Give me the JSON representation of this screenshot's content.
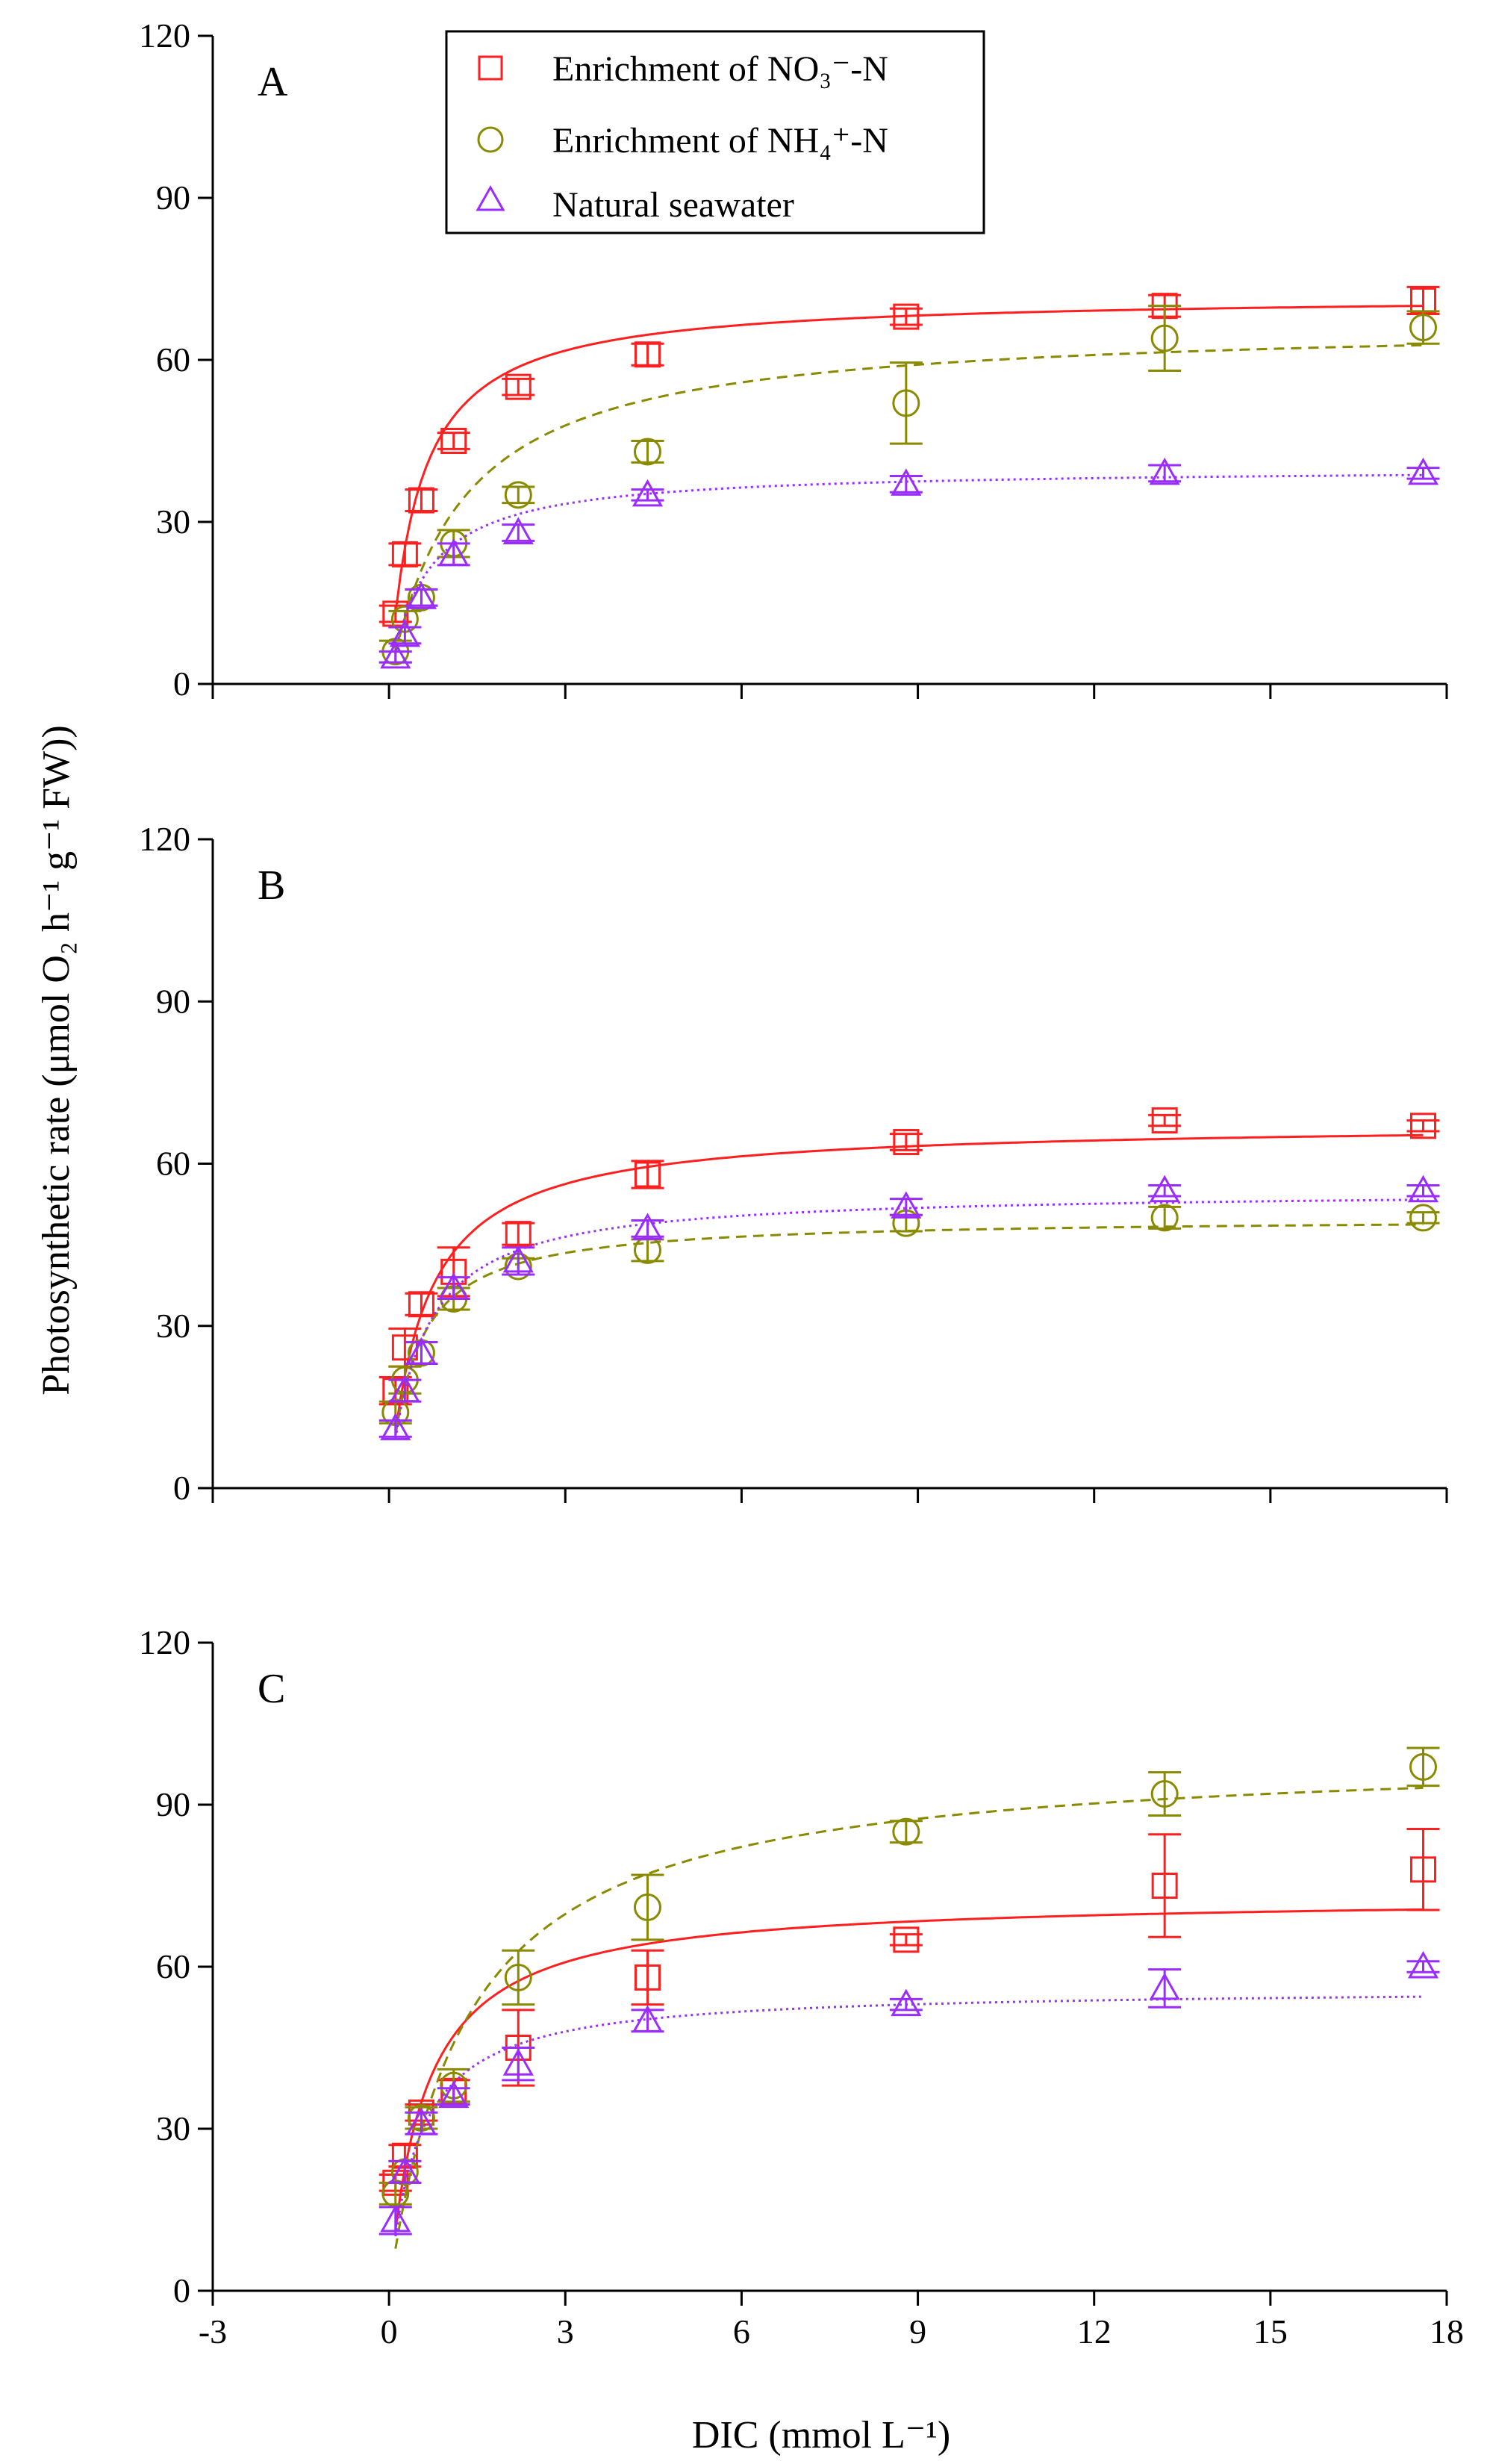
{
  "chart_data": [
    {
      "type": "scatter",
      "panel_label": "A",
      "title": "",
      "xlabel": "DIC (mmol L⁻¹)",
      "ylabel": "Photosynthetic rate (μmol O₂ h⁻¹ g⁻¹ FW))",
      "xlim": [
        -3,
        18
      ],
      "ylim": [
        0,
        120
      ],
      "x_ticks": [
        "-3",
        "0",
        "3",
        "6",
        "9",
        "12",
        "15",
        "18"
      ],
      "y_ticks": [
        "0",
        "30",
        "60",
        "90",
        "120"
      ],
      "legend_position": "top-center",
      "series": [
        {
          "name": "Enrichment of NO₃⁻-N",
          "marker": "square",
          "line": "solid",
          "color": "#ff1f1f",
          "x": [
            0.11,
            0.27,
            0.55,
            1.1,
            2.2,
            4.4,
            8.8,
            13.2,
            17.6
          ],
          "y": [
            13,
            24,
            34,
            45,
            55,
            61,
            68,
            70,
            71
          ],
          "err": [
            1.5,
            2.0,
            2.0,
            1.5,
            1.5,
            2.0,
            1.5,
            2.0,
            2.5
          ],
          "fit": {
            "vmax": 72,
            "km": 0.5
          }
        },
        {
          "name": "Enrichment of NH₄⁺-N",
          "marker": "circle",
          "line": "dashed",
          "color": "#8a8a00",
          "x": [
            0.11,
            0.27,
            0.55,
            1.1,
            2.2,
            4.4,
            8.8,
            13.2,
            17.6
          ],
          "y": [
            6,
            12,
            16,
            26,
            35,
            43,
            52,
            64,
            66
          ],
          "err": [
            2.0,
            1.5,
            1.5,
            2.5,
            1.5,
            2.0,
            7.5,
            6.0,
            3.0
          ],
          "fit": {
            "vmax": 67,
            "km": 1.2
          }
        },
        {
          "name": "Natural seawater",
          "marker": "triangle",
          "line": "dotted",
          "color": "#9a2cff",
          "x": [
            0.11,
            0.27,
            0.55,
            1.1,
            2.2,
            4.4,
            8.8,
            13.2,
            17.6
          ],
          "y": [
            5,
            9,
            16,
            24,
            28,
            35,
            37,
            39,
            39
          ],
          "err": [
            1.0,
            1.5,
            1.5,
            2.0,
            1.5,
            1.0,
            1.5,
            1.5,
            1.0
          ],
          "fit": {
            "vmax": 40,
            "km": 0.6
          }
        }
      ]
    },
    {
      "type": "scatter",
      "panel_label": "B",
      "title": "",
      "xlabel": "DIC (mmol L⁻¹)",
      "ylabel": "Photosynthetic rate (μmol O₂ h⁻¹ g⁻¹ FW))",
      "xlim": [
        -3,
        18
      ],
      "ylim": [
        0,
        120
      ],
      "x_ticks": [
        "-3",
        "0",
        "3",
        "6",
        "9",
        "12",
        "15",
        "18"
      ],
      "y_ticks": [
        "0",
        "30",
        "60",
        "90",
        "120"
      ],
      "series": [
        {
          "name": "Enrichment of NO₃⁻-N",
          "marker": "square",
          "line": "solid",
          "color": "#ff1f1f",
          "x": [
            0.11,
            0.27,
            0.55,
            1.1,
            2.2,
            4.4,
            8.8,
            13.2,
            17.6
          ],
          "y": [
            18,
            26,
            34,
            40,
            47,
            58,
            64,
            68,
            67
          ],
          "err": [
            2.5,
            3.5,
            2.0,
            4.5,
            2.0,
            2.5,
            1.5,
            1.0,
            1.0
          ],
          "fit": {
            "vmax": 67.5,
            "km": 0.6
          }
        },
        {
          "name": "Enrichment of NH₄⁺-N",
          "marker": "circle",
          "line": "dashed",
          "color": "#8a8a00",
          "x": [
            0.11,
            0.27,
            0.55,
            1.1,
            2.2,
            4.4,
            8.8,
            13.2,
            17.6
          ],
          "y": [
            14,
            20,
            25,
            35,
            41,
            44,
            49,
            50,
            50
          ],
          "err": [
            2.0,
            2.5,
            2.0,
            2.0,
            1.5,
            2.0,
            1.5,
            2.0,
            1.0
          ],
          "fit": {
            "vmax": 50,
            "km": 0.45
          }
        },
        {
          "name": "Natural seawater",
          "marker": "triangle",
          "line": "dotted",
          "color": "#9a2cff",
          "x": [
            0.11,
            0.27,
            0.55,
            1.1,
            2.2,
            4.4,
            8.8,
            13.2,
            17.6
          ],
          "y": [
            11,
            18,
            25,
            37,
            42,
            48,
            52,
            55,
            55
          ],
          "err": [
            1.5,
            2.0,
            2.0,
            2.0,
            2.5,
            1.5,
            1.5,
            1.0,
            1.0
          ],
          "fit": {
            "vmax": 55,
            "km": 0.55
          }
        }
      ]
    },
    {
      "type": "scatter",
      "panel_label": "C",
      "title": "",
      "xlabel": "DIC (mmol L⁻¹)",
      "ylabel": "Photosynthetic rate (μmol O₂ h⁻¹ g⁻¹ FW))",
      "xlim": [
        -3,
        18
      ],
      "ylim": [
        0,
        120
      ],
      "x_ticks": [
        "-3",
        "0",
        "3",
        "6",
        "9",
        "12",
        "15",
        "18"
      ],
      "y_ticks": [
        "0",
        "30",
        "60",
        "90",
        "120"
      ],
      "series": [
        {
          "name": "Enrichment of NO₃⁻-N",
          "marker": "square",
          "line": "solid",
          "color": "#ff1f1f",
          "x": [
            0.11,
            0.27,
            0.55,
            1.1,
            2.2,
            4.4,
            8.8,
            13.2,
            17.6
          ],
          "y": [
            20,
            25,
            33,
            37,
            45,
            58,
            65,
            75,
            78
          ],
          "err": [
            1.5,
            2.0,
            1.5,
            2.0,
            7.0,
            5.0,
            1.0,
            9.5,
            7.5
          ],
          "fit": {
            "vmax": 73,
            "km": 0.6
          }
        },
        {
          "name": "Enrichment of NH₄⁺-N",
          "marker": "circle",
          "line": "dashed",
          "color": "#8a8a00",
          "x": [
            0.11,
            0.27,
            0.55,
            1.1,
            2.2,
            4.4,
            8.8,
            13.2,
            17.6
          ],
          "y": [
            18,
            22,
            32,
            38,
            58,
            71,
            85,
            92,
            97
          ],
          "err": [
            2.0,
            2.0,
            2.0,
            3.0,
            5.0,
            6.0,
            2.0,
            4.0,
            3.5
          ],
          "fit": {
            "vmax": 100,
            "km": 1.3
          }
        },
        {
          "name": "Natural seawater",
          "marker": "triangle",
          "line": "dotted",
          "color": "#9a2cff",
          "x": [
            0.11,
            0.27,
            0.55,
            1.1,
            2.2,
            4.4,
            8.8,
            13.2,
            17.6
          ],
          "y": [
            13,
            22,
            31,
            36,
            42,
            50,
            53,
            56,
            60
          ],
          "err": [
            2.5,
            2.0,
            2.0,
            1.5,
            3.0,
            2.0,
            1.0,
            3.5,
            1.0
          ],
          "fit": {
            "vmax": 56,
            "km": 0.5
          }
        }
      ]
    }
  ],
  "legend": {
    "items": [
      {
        "symbol": "square",
        "color": "#ff1f1f",
        "label": "Enrichment of NO₃⁻-N"
      },
      {
        "symbol": "circle",
        "color": "#8a8a00",
        "label": "Enrichment of  NH₄⁺-N"
      },
      {
        "symbol": "triangle",
        "color": "#9a2cff",
        "label": "Natural seawater"
      }
    ]
  },
  "axes": {
    "ylabel": "Photosynthetic rate (μmol O₂ h⁻¹ g⁻¹ FW))",
    "xlabel": "DIC (mmol L⁻¹)"
  }
}
